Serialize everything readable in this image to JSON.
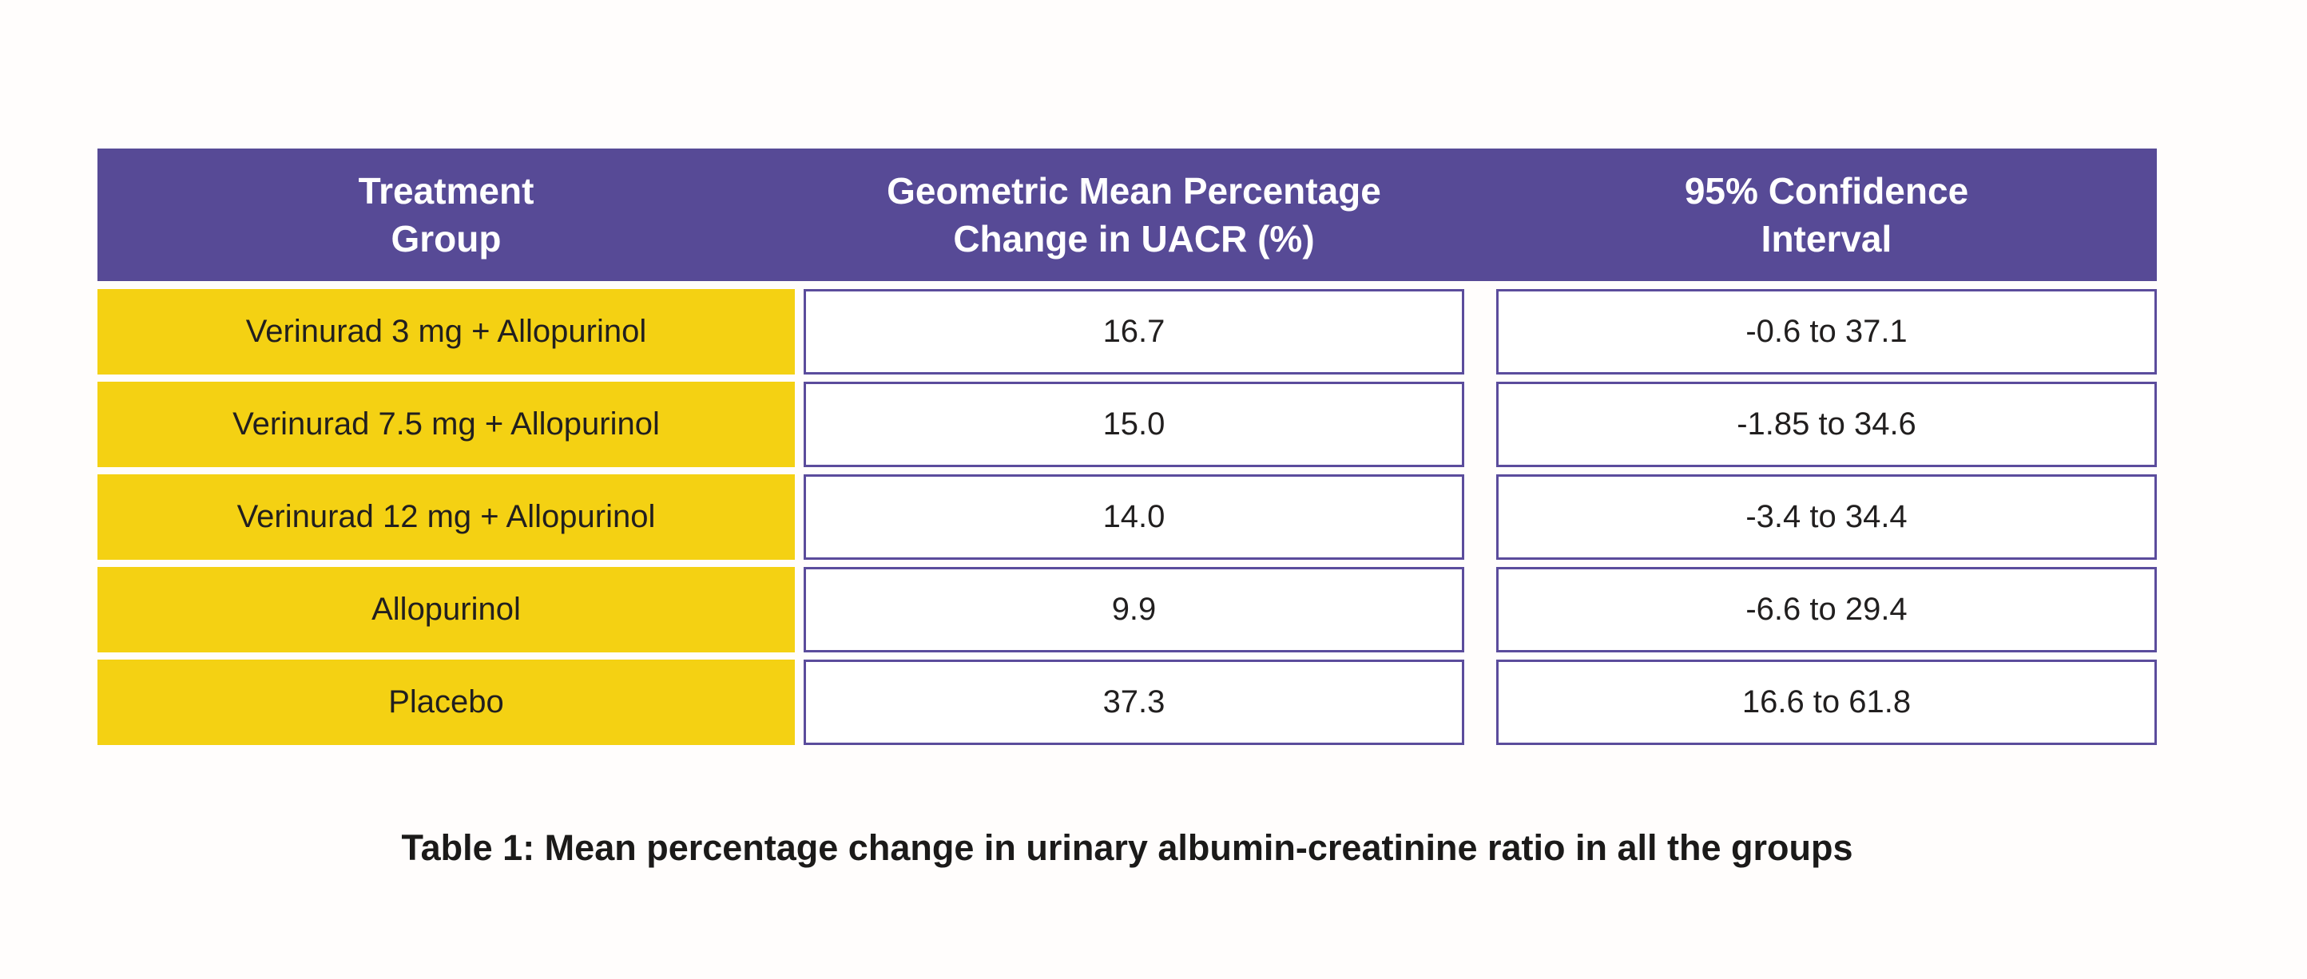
{
  "theme": {
    "page_bg": "#fffdfc",
    "header_bg": "#574a96",
    "row_label_bg": "#f4d113",
    "cell_border": "#5b4c9c",
    "header_text": "#ffffff",
    "body_text": "#211f1f"
  },
  "table": {
    "headers": [
      {
        "lines": [
          "Treatment",
          "Group"
        ]
      },
      {
        "lines": [
          "Geometric Mean Percentage",
          "Change in UACR (%)"
        ]
      },
      {
        "lines": [
          "95% Confidence",
          "Interval"
        ]
      }
    ],
    "rows": [
      {
        "group": "Verinurad 3 mg + Allopurinol",
        "change": "16.7",
        "ci": "-0.6 to 37.1"
      },
      {
        "group": "Verinurad 7.5 mg + Allopurinol",
        "change": "15.0",
        "ci": "-1.85 to 34.6"
      },
      {
        "group": "Verinurad 12 mg + Allopurinol",
        "change": "14.0",
        "ci": "-3.4 to 34.4"
      },
      {
        "group": "Allopurinol",
        "change": "9.9",
        "ci": "-6.6 to 29.4"
      },
      {
        "group": "Placebo",
        "change": "37.3",
        "ci": "16.6 to 61.8"
      }
    ]
  },
  "caption": "Table 1: Mean percentage change in urinary albumin-creatinine ratio in all the groups",
  "chart_data": {
    "type": "table",
    "title": "Table 1: Mean percentage change in urinary albumin-creatinine ratio in all the groups",
    "columns": [
      "Treatment Group",
      "Geometric Mean Percentage Change in UACR (%)",
      "95% Confidence Interval"
    ],
    "rows": [
      [
        "Verinurad 3 mg + Allopurinol",
        16.7,
        "-0.6 to 37.1"
      ],
      [
        "Verinurad 7.5 mg + Allopurinol",
        15.0,
        "-1.85 to 34.6"
      ],
      [
        "Verinurad 12 mg + Allopurinol",
        14.0,
        "-3.4 to 34.4"
      ],
      [
        "Allopurinol",
        9.9,
        "-6.6 to 29.4"
      ],
      [
        "Placebo",
        37.3,
        "16.6 to 61.8"
      ]
    ]
  }
}
